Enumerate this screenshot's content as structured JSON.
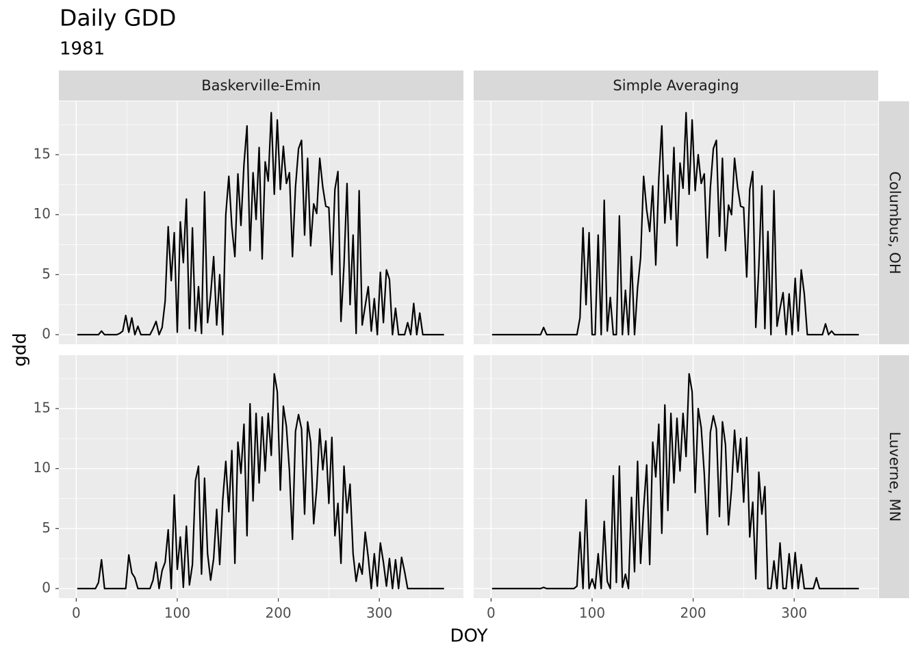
{
  "chart_data": {
    "type": "line",
    "title": "Daily GDD",
    "subtitle": "1981",
    "xlabel": "DOY",
    "ylabel": "gdd",
    "columns": [
      "Baskerville-Emin",
      "Simple Averaging"
    ],
    "rows": [
      "Columbus, OH",
      "Luverne, MN"
    ],
    "color": "#000000",
    "xlim": [
      -17.2,
      383.2
    ],
    "xticks": [
      0,
      100,
      200,
      300
    ],
    "x_minor_breaks": [
      50,
      150,
      250,
      350
    ],
    "ylim": [
      -0.8,
      19.45
    ],
    "yticks": [
      0,
      5,
      10,
      15
    ],
    "y_minor_breaks": [
      2.5,
      7.5,
      12.5,
      17.5
    ],
    "grid": true,
    "x": [
      1,
      4,
      7,
      10,
      13,
      16,
      19,
      22,
      25,
      28,
      31,
      34,
      37,
      40,
      43,
      46,
      49,
      52,
      55,
      58,
      61,
      64,
      67,
      70,
      73,
      76,
      79,
      82,
      85,
      88,
      91,
      94,
      97,
      100,
      103,
      106,
      109,
      112,
      115,
      118,
      121,
      124,
      127,
      130,
      133,
      136,
      139,
      142,
      145,
      148,
      151,
      154,
      157,
      160,
      163,
      166,
      169,
      172,
      175,
      178,
      181,
      184,
      187,
      190,
      193,
      196,
      199,
      202,
      205,
      208,
      211,
      214,
      217,
      220,
      223,
      226,
      229,
      232,
      235,
      238,
      241,
      244,
      247,
      250,
      253,
      256,
      259,
      262,
      265,
      268,
      271,
      274,
      277,
      280,
      283,
      286,
      289,
      292,
      295,
      298,
      301,
      304,
      307,
      310,
      313,
      316,
      319,
      322,
      325,
      328,
      331,
      334,
      337,
      340,
      343,
      346,
      349,
      352,
      355,
      358,
      361,
      364
    ],
    "panels": [
      {
        "column": 0,
        "row": 0,
        "values": [
          0,
          0,
          0,
          0,
          0,
          0,
          0,
          0,
          0.3,
          0,
          0,
          0,
          0,
          0,
          0.1,
          0.3,
          1.6,
          0.2,
          1.4,
          0,
          0.7,
          0,
          0,
          0,
          0,
          0.5,
          1.1,
          0,
          0.6,
          2.8,
          9,
          4.5,
          8.5,
          0.2,
          9.4,
          6,
          11.3,
          0.5,
          8.9,
          0.3,
          4,
          0.1,
          11.9,
          1,
          3.3,
          6.5,
          0.8,
          5,
          0,
          10,
          13.2,
          9,
          6.5,
          13.4,
          9.1,
          14.2,
          17.4,
          7,
          13.5,
          9.6,
          15.6,
          6.3,
          14.4,
          12.8,
          18.5,
          11.7,
          17.9,
          12.1,
          15.7,
          12.6,
          13.5,
          6.5,
          12.3,
          15.5,
          16.2,
          8.3,
          14.7,
          7.4,
          10.9,
          10.1,
          14.7,
          12.3,
          10.7,
          10.6,
          5,
          12.1,
          13.6,
          1.1,
          5.8,
          12.6,
          2.5,
          8.3,
          0.1,
          12,
          0.8,
          2.4,
          4,
          0.3,
          3,
          0,
          5.2,
          1,
          5.4,
          4.6,
          0,
          2.2,
          0,
          0,
          0,
          1,
          0,
          2.6,
          0,
          1.8,
          0,
          0,
          0,
          0,
          0,
          0,
          0,
          0
        ]
      },
      {
        "column": 1,
        "row": 0,
        "values": [
          0,
          0,
          0,
          0,
          0,
          0,
          0,
          0,
          0,
          0,
          0,
          0,
          0,
          0,
          0,
          0,
          0,
          0.6,
          0,
          0,
          0,
          0,
          0,
          0,
          0,
          0,
          0,
          0,
          0,
          1.4,
          8.9,
          2.5,
          8.5,
          0,
          0,
          8.3,
          0,
          11.2,
          0.3,
          3.1,
          0,
          0,
          9.9,
          0,
          3.7,
          0,
          6.5,
          0,
          3.9,
          6.4,
          13.2,
          10.4,
          8.6,
          12.4,
          5.8,
          13,
          17.4,
          9.3,
          13.3,
          9.6,
          15.6,
          7.4,
          14.3,
          12.2,
          18.5,
          11.7,
          17.9,
          12,
          15,
          12.6,
          13.4,
          6.4,
          12.2,
          15.5,
          16.2,
          8.2,
          14.7,
          7,
          10.8,
          10,
          14.7,
          12.3,
          10.7,
          10.6,
          4.8,
          12.1,
          13.6,
          0.6,
          5.6,
          12.4,
          0.5,
          8.6,
          0,
          12,
          0.7,
          2.2,
          3.5,
          0,
          3.4,
          0,
          4.7,
          0.3,
          5.4,
          3.4,
          0,
          0,
          0,
          0,
          0,
          0,
          0.9,
          0,
          0.3,
          0,
          0,
          0,
          0,
          0,
          0,
          0,
          0,
          0
        ]
      },
      {
        "column": 0,
        "row": 1,
        "values": [
          0,
          0,
          0,
          0,
          0,
          0,
          0,
          0.5,
          2.4,
          0,
          0,
          0,
          0,
          0,
          0,
          0,
          0,
          2.8,
          1.3,
          0.9,
          0,
          0,
          0,
          0,
          0,
          0.7,
          2.2,
          0,
          1.5,
          2.2,
          4.9,
          0,
          7.8,
          1.6,
          4.3,
          0.1,
          5.2,
          0.3,
          2,
          9,
          10.2,
          1.2,
          9.2,
          2.9,
          0.7,
          2.5,
          6.6,
          2,
          7.4,
          10.6,
          6.4,
          11.5,
          2.1,
          12.2,
          9.6,
          13.7,
          4.4,
          15.4,
          7.3,
          14.6,
          8.8,
          14.3,
          9.8,
          14.6,
          11.1,
          17.9,
          16.4,
          8.2,
          15.2,
          13.5,
          9.8,
          4.1,
          13.1,
          14.5,
          13.3,
          6.2,
          13.9,
          12.2,
          5.4,
          8.4,
          13.3,
          9.9,
          12.3,
          7.1,
          12.6,
          4.4,
          7.1,
          2.1,
          10.2,
          6.3,
          8.7,
          2.9,
          0.6,
          2.1,
          1.2,
          4.7,
          2.6,
          0,
          2.9,
          0.2,
          3.8,
          2.2,
          0.2,
          2.5,
          0,
          2.4,
          0,
          2.6,
          1.4,
          0,
          0,
          0,
          0,
          0,
          0,
          0,
          0,
          0,
          0,
          0,
          0,
          0
        ]
      },
      {
        "column": 1,
        "row": 1,
        "values": [
          0,
          0,
          0,
          0,
          0,
          0,
          0,
          0,
          0,
          0,
          0,
          0,
          0,
          0,
          0,
          0,
          0,
          0.1,
          0,
          0,
          0,
          0,
          0,
          0,
          0,
          0,
          0,
          0,
          0.2,
          4.7,
          0,
          7.4,
          0,
          0.8,
          0,
          2.9,
          0,
          5.6,
          0.6,
          0,
          9.4,
          0.5,
          10.2,
          0.1,
          1.2,
          0,
          7.6,
          1.4,
          10.6,
          2.1,
          6.7,
          10.3,
          2,
          12.2,
          9.3,
          13.7,
          4.6,
          15.3,
          6.5,
          14.6,
          8.8,
          14.2,
          9.8,
          14.6,
          11,
          17.9,
          16.4,
          8,
          15,
          13.4,
          9.6,
          4.5,
          13,
          14.4,
          13.3,
          6,
          13.9,
          12,
          5.3,
          8.3,
          13.2,
          9.7,
          12.5,
          7.2,
          12.6,
          4.3,
          7.2,
          0.8,
          9.7,
          6.2,
          8.5,
          0,
          0,
          2.3,
          0,
          3.8,
          0,
          0,
          2.9,
          0,
          3,
          0,
          2,
          0,
          0,
          0,
          0,
          0.9,
          0,
          0,
          0,
          0,
          0,
          0,
          0,
          0,
          0,
          0,
          0,
          0,
          0,
          0
        ]
      }
    ]
  }
}
